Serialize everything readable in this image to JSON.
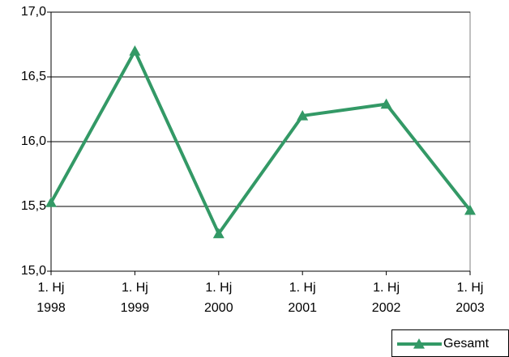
{
  "chart_data": {
    "type": "line",
    "categories": [
      "1. Hj\n1998",
      "1. Hj\n1999",
      "1. Hj\n2000",
      "1. Hj\n2001",
      "1. Hj\n2002",
      "1. Hj\n2003"
    ],
    "series": [
      {
        "name": "Gesamt",
        "color": "#339966",
        "values": [
          15.53,
          16.7,
          15.29,
          16.2,
          16.29,
          15.47
        ]
      }
    ],
    "ylim": [
      15,
      17
    ],
    "yticks": [
      {
        "value": 15,
        "label": "15,0"
      },
      {
        "value": 15.5,
        "label": "15,5"
      },
      {
        "value": 16,
        "label": "16,0"
      },
      {
        "value": 16.5,
        "label": "16,5"
      },
      {
        "value": 17,
        "label": "17,0"
      }
    ],
    "grid": true,
    "legend": "bottom-right"
  }
}
